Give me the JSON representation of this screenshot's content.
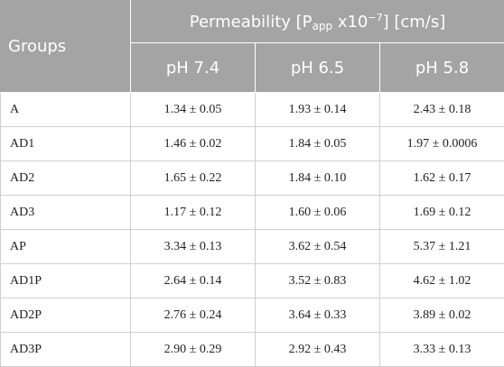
{
  "table": {
    "header": {
      "groups_label": "Groups",
      "permeability_label_pre": "Permeability [P",
      "permeability_sub": "app",
      "permeability_mid": " x10",
      "permeability_sup": "−7",
      "permeability_post": "] [cm/s]",
      "columns": [
        "pH 7.4",
        "pH 6.5",
        "pH 5.8"
      ]
    },
    "rows": [
      {
        "group": "A",
        "values": [
          "1.34 ± 0.05",
          "1.93 ± 0.14",
          "2.43 ± 0.18"
        ]
      },
      {
        "group": "AD1",
        "values": [
          "1.46 ± 0.02",
          "1.84 ± 0.05",
          "1.97 ± 0.0006"
        ]
      },
      {
        "group": "AD2",
        "values": [
          "1.65 ± 0.22",
          "1.84 ± 0.10",
          "1.62 ± 0.17"
        ]
      },
      {
        "group": "AD3",
        "values": [
          "1.17 ± 0.12",
          "1.60 ± 0.06",
          "1.69 ± 0.12"
        ]
      },
      {
        "group": "AP",
        "values": [
          "3.34 ± 0.13",
          "3.62 ± 0.54",
          "5.37 ± 1.21"
        ]
      },
      {
        "group": "AD1P",
        "values": [
          "2.64 ± 0.14",
          "3.52 ± 0.83",
          "4.62 ± 1.02"
        ]
      },
      {
        "group": "AD2P",
        "values": [
          "2.76 ± 0.24",
          "3.64 ± 0.33",
          "3.89 ± 0.02"
        ]
      },
      {
        "group": "AD3P",
        "values": [
          "2.90 ± 0.29",
          "2.92 ± 0.43",
          "3.33 ± 0.13"
        ]
      }
    ]
  }
}
